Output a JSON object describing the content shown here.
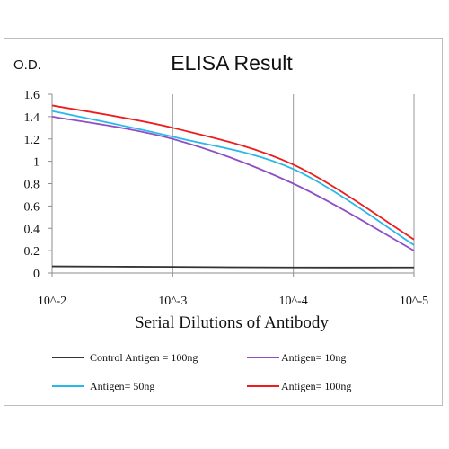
{
  "chart_data": {
    "type": "line",
    "title": "ELISA Result",
    "ylabel": "O.D.",
    "xlabel": "Serial Dilutions  of Antibody",
    "x": [
      "10^-2",
      "10^-3",
      "10^-4",
      "10^-5"
    ],
    "ylim": [
      0,
      1.6
    ],
    "yticks": [
      "0",
      "0.2",
      "0.4",
      "0.6",
      "0.8",
      "1",
      "1.2",
      "1.4",
      "1.6"
    ],
    "grid": "vertical",
    "series": [
      {
        "name": "Control Antigen = 100ng",
        "color": "#333333",
        "values": [
          0.06,
          0.055,
          0.05,
          0.05
        ]
      },
      {
        "name": "Antigen= 10ng",
        "color": "#8e4fc4",
        "values": [
          1.4,
          1.2,
          0.8,
          0.2
        ]
      },
      {
        "name": "Antigen= 50ng",
        "color": "#29b8ea",
        "values": [
          1.45,
          1.22,
          0.93,
          0.25
        ]
      },
      {
        "name": "Antigen= 100ng",
        "color": "#ee1c1c",
        "values": [
          1.5,
          1.3,
          0.97,
          0.3
        ]
      }
    ]
  }
}
